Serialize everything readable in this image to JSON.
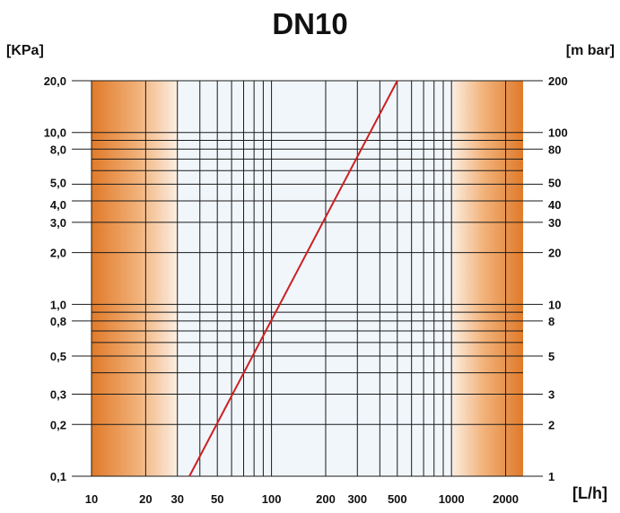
{
  "chart_data": {
    "type": "line",
    "title": "DN10",
    "ylabel_left": "[KPa]",
    "ylabel_right": "[m bar]",
    "xlabel": "[L/h]",
    "x_scale": "log",
    "y_scale": "log",
    "xlim": [
      10,
      2500
    ],
    "ylim": [
      0.1,
      20
    ],
    "x_ticks": [
      {
        "value": 10,
        "label": "10"
      },
      {
        "value": 20,
        "label": "20"
      },
      {
        "value": 30,
        "label": "30"
      },
      {
        "value": 50,
        "label": "50"
      },
      {
        "value": 100,
        "label": "100"
      },
      {
        "value": 200,
        "label": "200"
      },
      {
        "value": 300,
        "label": "300"
      },
      {
        "value": 500,
        "label": "500"
      },
      {
        "value": 1000,
        "label": "1000"
      },
      {
        "value": 2000,
        "label": "2000"
      }
    ],
    "y_ticks_left": [
      {
        "value": 0.1,
        "label": "0,1"
      },
      {
        "value": 0.2,
        "label": "0,2"
      },
      {
        "value": 0.3,
        "label": "0,3"
      },
      {
        "value": 0.5,
        "label": "0,5"
      },
      {
        "value": 0.8,
        "label": "0,8"
      },
      {
        "value": 1.0,
        "label": "1,0"
      },
      {
        "value": 2.0,
        "label": "2,0"
      },
      {
        "value": 3.0,
        "label": "3,0"
      },
      {
        "value": 4.0,
        "label": "4,0"
      },
      {
        "value": 5.0,
        "label": "5,0"
      },
      {
        "value": 8.0,
        "label": "8,0"
      },
      {
        "value": 10.0,
        "label": "10,0"
      },
      {
        "value": 20.0,
        "label": "20,0"
      }
    ],
    "y_ticks_right": [
      {
        "value": 0.1,
        "label": "1"
      },
      {
        "value": 0.2,
        "label": "2"
      },
      {
        "value": 0.3,
        "label": "3"
      },
      {
        "value": 0.5,
        "label": "5"
      },
      {
        "value": 0.8,
        "label": "8"
      },
      {
        "value": 1.0,
        "label": "10"
      },
      {
        "value": 2.0,
        "label": "20"
      },
      {
        "value": 3.0,
        "label": "30"
      },
      {
        "value": 4.0,
        "label": "40"
      },
      {
        "value": 5.0,
        "label": "50"
      },
      {
        "value": 8.0,
        "label": "80"
      },
      {
        "value": 10.0,
        "label": "100"
      },
      {
        "value": 20.0,
        "label": "200"
      }
    ],
    "grid": true,
    "shaded_ranges_x": [
      [
        10,
        30
      ],
      [
        1000,
        2500
      ]
    ],
    "series": [
      {
        "color": "#cc2020",
        "points": [
          {
            "x": 35,
            "y": 0.1
          },
          {
            "x": 500,
            "y": 20
          }
        ]
      }
    ],
    "colors": {
      "shade": "#e07a2a",
      "shade_light": "#fbe6d2",
      "middle": "#f1f6fb",
      "grid": "#1a1a1a",
      "line": "#cc2020"
    }
  }
}
